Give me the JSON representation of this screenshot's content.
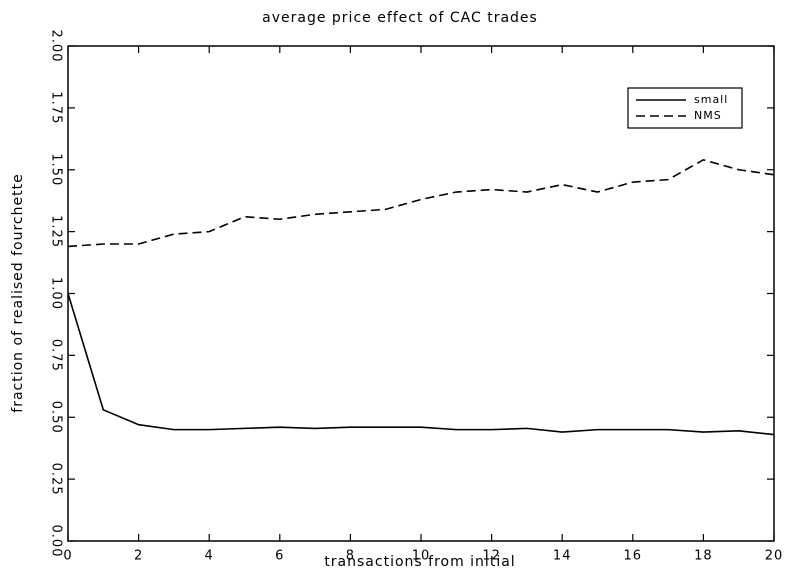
{
  "chart_data": {
    "type": "line",
    "title": "average price effect of CAC trades",
    "xlabel": "transactions from initial",
    "ylabel": "fraction of realised fourchette",
    "x": [
      0,
      1,
      2,
      3,
      4,
      5,
      6,
      7,
      8,
      9,
      10,
      11,
      12,
      13,
      14,
      15,
      16,
      17,
      18,
      19,
      20
    ],
    "series": [
      {
        "name": "small",
        "color": "#000000",
        "dash": "solid",
        "values": [
          1.0,
          0.53,
          0.47,
          0.45,
          0.45,
          0.455,
          0.46,
          0.455,
          0.46,
          0.46,
          0.46,
          0.45,
          0.45,
          0.455,
          0.44,
          0.45,
          0.45,
          0.45,
          0.44,
          0.445,
          0.43
        ]
      },
      {
        "name": "NMS",
        "color": "#000000",
        "dash": "dashed",
        "values": [
          1.19,
          1.2,
          1.2,
          1.24,
          1.25,
          1.31,
          1.3,
          1.32,
          1.33,
          1.34,
          1.38,
          1.41,
          1.42,
          1.41,
          1.44,
          1.41,
          1.45,
          1.46,
          1.54,
          1.5,
          1.48
        ]
      }
    ],
    "xlim": [
      0,
      20
    ],
    "xticks": [
      0,
      2,
      4,
      6,
      8,
      10,
      12,
      14,
      16,
      18,
      20
    ],
    "ylim": [
      0,
      2
    ],
    "yticks": [
      {
        "value": 0,
        "label": "0.00"
      },
      {
        "value": 0.25,
        "label": "0.25"
      },
      {
        "value": 0.5,
        "label": "0.50"
      },
      {
        "value": 0.75,
        "label": "0.75"
      },
      {
        "value": 1,
        "label": "1.00"
      },
      {
        "value": 1.25,
        "label": "1.25"
      },
      {
        "value": 1.5,
        "label": "1.50"
      },
      {
        "value": 1.75,
        "label": "1.75"
      },
      {
        "value": 2,
        "label": "2.00"
      }
    ],
    "grid": false,
    "legend": "upper right"
  }
}
